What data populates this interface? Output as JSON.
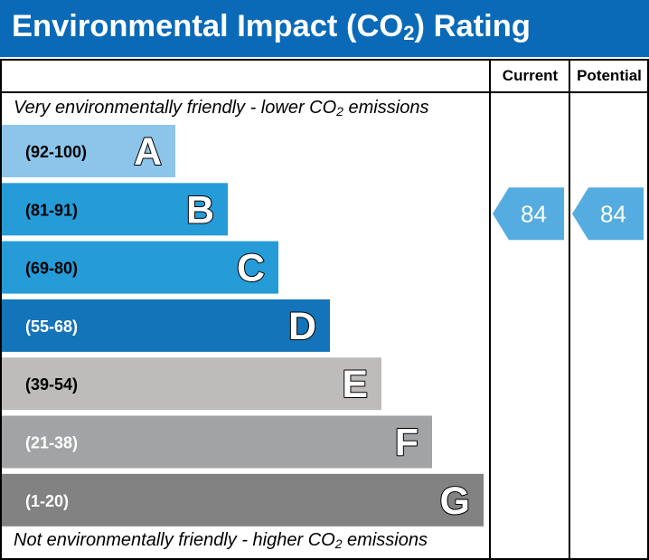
{
  "header": {
    "title_main": "Environmental Impact (CO",
    "title_sub": "2",
    "title_end": ") Rating",
    "background": "#0a6ab7"
  },
  "columns": {
    "current_label": "Current",
    "potential_label": "Potential"
  },
  "notes": {
    "top_main": "Very environmentally friendly - lower CO",
    "top_sub": "2",
    "top_end": " emissions",
    "bottom_main": "Not environmentally friendly - higher CO",
    "bottom_sub": "2",
    "bottom_end": " emissions"
  },
  "chart_data": {
    "type": "bar",
    "bands": [
      {
        "range": "(92-100)",
        "letter": "A",
        "min": 92,
        "max": 100,
        "color": "#8cc5e9",
        "label_color": "#000000"
      },
      {
        "range": "(81-91)",
        "letter": "B",
        "min": 81,
        "max": 91,
        "color": "#259bd7",
        "label_color": "#000000"
      },
      {
        "range": "(69-80)",
        "letter": "C",
        "min": 69,
        "max": 80,
        "color": "#259bd7",
        "label_color": "#000000"
      },
      {
        "range": "(55-68)",
        "letter": "D",
        "min": 55,
        "max": 68,
        "color": "#1474b9",
        "label_color": "#ffffff"
      },
      {
        "range": "(39-54)",
        "letter": "E",
        "min": 39,
        "max": 54,
        "color": "#bdbcba",
        "label_color": "#000000"
      },
      {
        "range": "(21-38)",
        "letter": "F",
        "min": 21,
        "max": 38,
        "color": "#a2a3a5",
        "label_color": "#ffffff"
      },
      {
        "range": "(1-20)",
        "letter": "G",
        "min": 1,
        "max": 20,
        "color": "#828282",
        "label_color": "#ffffff"
      }
    ],
    "current": {
      "value": 84,
      "color": "#55ace0"
    },
    "potential": {
      "value": 84,
      "color": "#55ace0"
    }
  }
}
